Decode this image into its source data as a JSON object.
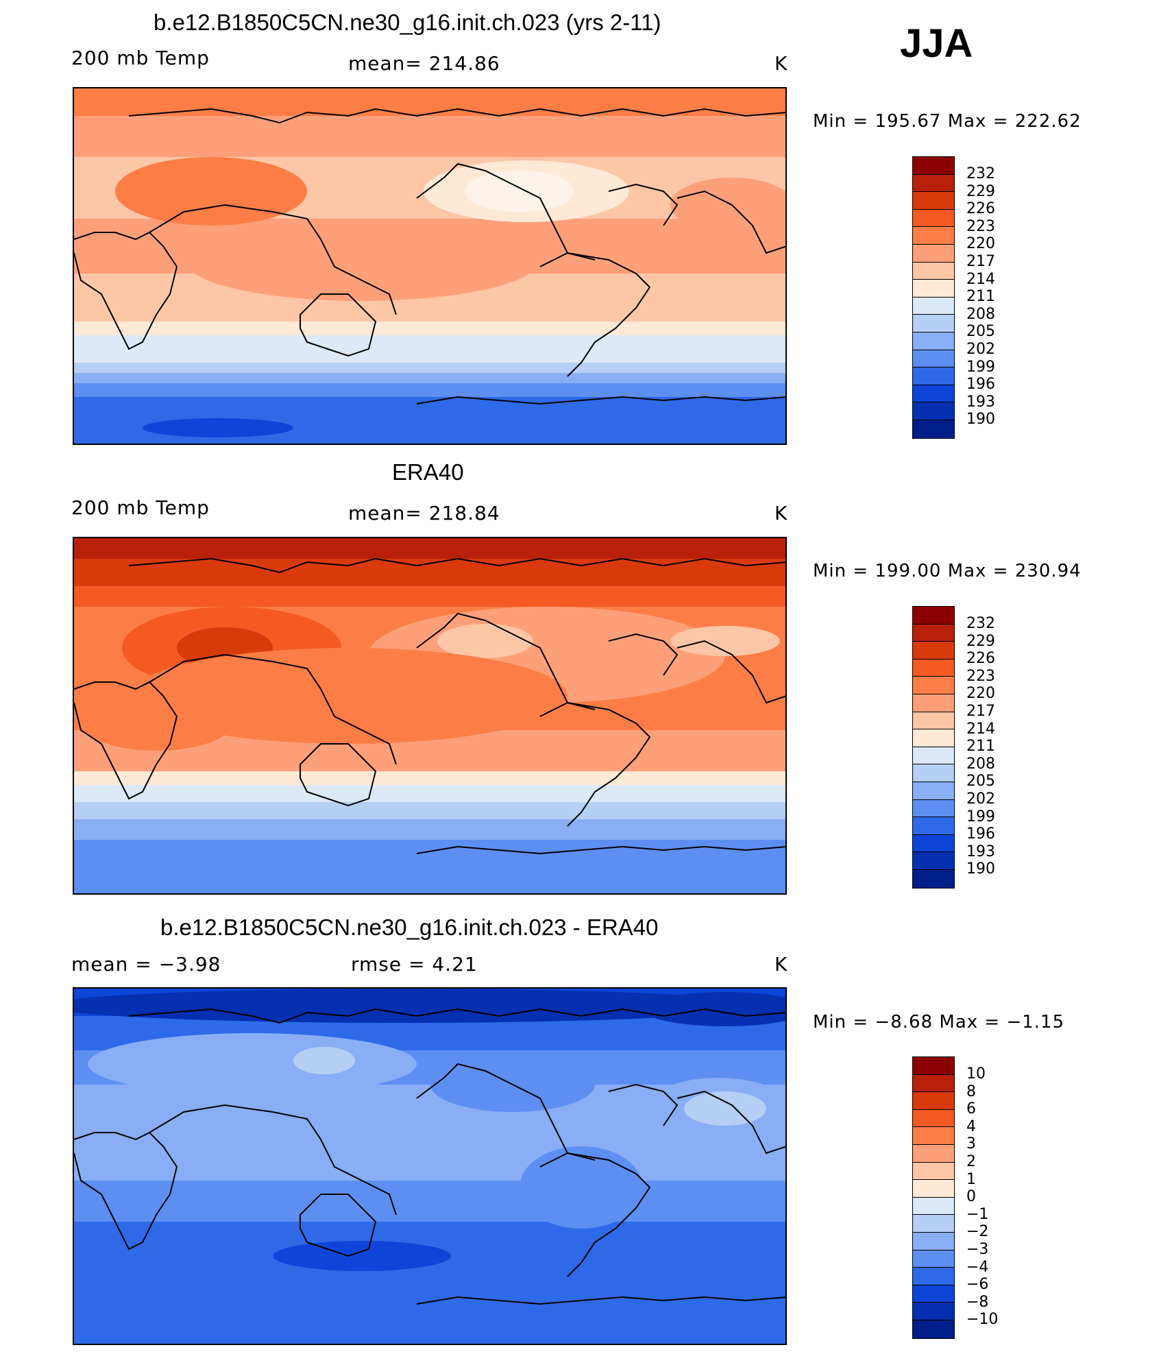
{
  "season": "JJA",
  "panels": [
    {
      "title": "b.e12.B1850C5CN.ne30_g16.init.ch.023 (yrs 2-11)",
      "left_label": "200 mb Temp",
      "center_label": "mean=  214.86",
      "units": "K",
      "minmax": "Min  =  195.67  Max  =  222.62",
      "colorbar_labels": [
        "232",
        "229",
        "226",
        "223",
        "220",
        "217",
        "214",
        "211",
        "208",
        "205",
        "202",
        "199",
        "196",
        "193",
        "190"
      ]
    },
    {
      "title": "ERA40",
      "left_label": "200 mb Temp",
      "center_label": "mean=  218.84",
      "units": "K",
      "minmax": "Min  =  199.00  Max  =  230.94",
      "colorbar_labels": [
        "232",
        "229",
        "226",
        "223",
        "220",
        "217",
        "214",
        "211",
        "208",
        "205",
        "202",
        "199",
        "196",
        "193",
        "190"
      ]
    },
    {
      "title": "b.e12.B1850C5CN.ne30_g16.init.ch.023 - ERA40",
      "left_label": "mean  =     −3.98",
      "center_label": "rmse  =      4.21",
      "units": "K",
      "minmax": "Min  =    −8.68  Max  =    −1.15",
      "colorbar_labels": [
        "10",
        "8",
        "6",
        "4",
        "3",
        "2",
        "1",
        "0",
        "−1",
        "−2",
        "−3",
        "−4",
        "−6",
        "−8",
        "−10"
      ]
    }
  ],
  "colors": {
    "colorbar": [
      "#8b0000",
      "#b8200a",
      "#d93a0c",
      "#f45a22",
      "#fc7e46",
      "#fda07a",
      "#fdc6a7",
      "#fde9d6",
      "#dce9f8",
      "#b5cff5",
      "#89aef5",
      "#5d8ff2",
      "#2e6ae8",
      "#0d45d8",
      "#0530b0",
      "#001e8a"
    ]
  },
  "map_icons": [
    "coastline-icon"
  ]
}
